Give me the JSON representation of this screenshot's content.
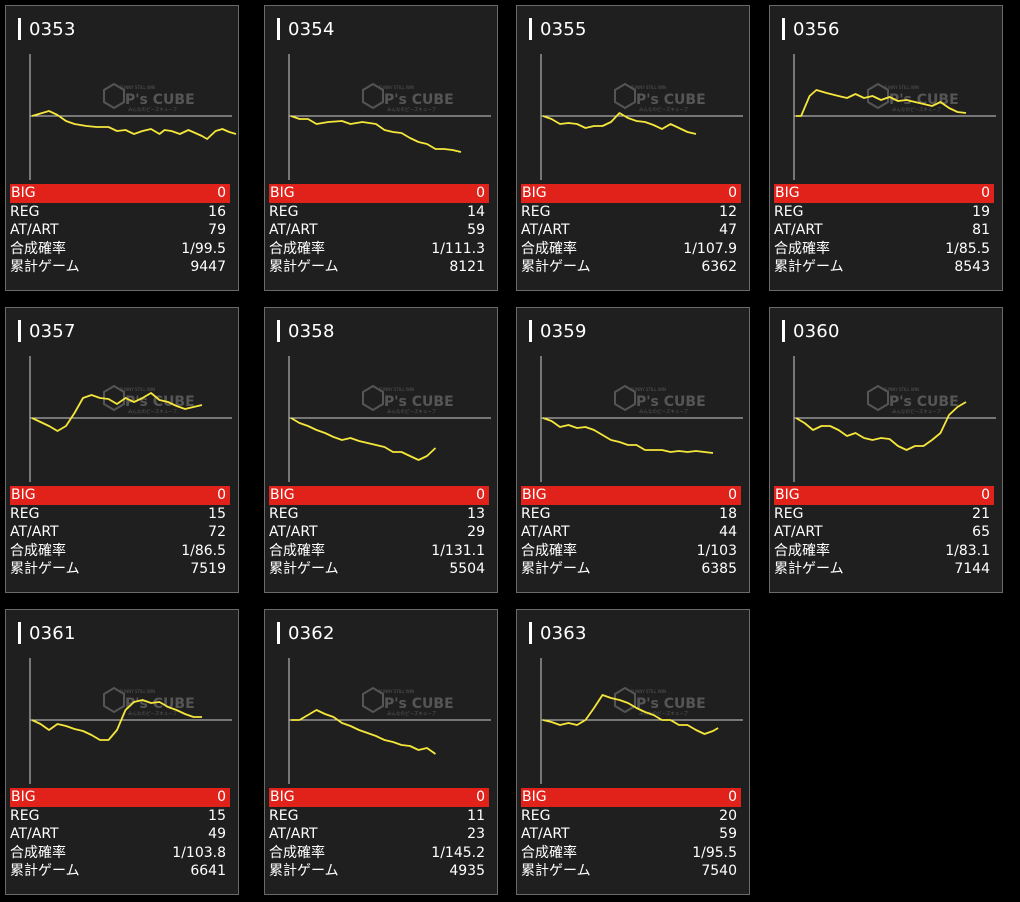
{
  "labels": {
    "big": "BIG",
    "reg": "REG",
    "at": "AT/ART",
    "prob": "合成確率",
    "games": "累計ゲーム"
  },
  "watermark": {
    "brand": "P's CUBE",
    "tagline_top": "FUNNY STILL WIN",
    "tagline_bottom": "みんなのピーズキューブ"
  },
  "colors": {
    "big_row": "#e0221a",
    "graph_line": "#f5e63c",
    "card_bg": "#1f1f1f"
  },
  "machines": [
    {
      "number": "0353",
      "big": "0",
      "reg": "16",
      "at": "79",
      "prob": "1/99.5",
      "games": "9447",
      "graph": [
        [
          0,
          0
        ],
        [
          0.1,
          -5
        ],
        [
          0.15,
          -1
        ],
        [
          0.2,
          5
        ],
        [
          0.25,
          8
        ],
        [
          0.32,
          10
        ],
        [
          0.38,
          11
        ],
        [
          0.45,
          11
        ],
        [
          0.5,
          15
        ],
        [
          0.55,
          14
        ],
        [
          0.6,
          18
        ],
        [
          0.65,
          15
        ],
        [
          0.7,
          13
        ],
        [
          0.75,
          18
        ],
        [
          0.78,
          14
        ],
        [
          0.82,
          15
        ],
        [
          0.87,
          18
        ],
        [
          0.92,
          14
        ],
        [
          1,
          20
        ],
        [
          1.03,
          23
        ],
        [
          1.08,
          15
        ],
        [
          1.12,
          13
        ],
        [
          1.16,
          16
        ],
        [
          1.2,
          18
        ]
      ]
    },
    {
      "number": "0354",
      "big": "0",
      "reg": "14",
      "at": "59",
      "prob": "1/111.3",
      "games": "8121",
      "graph": [
        [
          0,
          0
        ],
        [
          0.05,
          3
        ],
        [
          0.1,
          3
        ],
        [
          0.15,
          8
        ],
        [
          0.22,
          6
        ],
        [
          0.3,
          5
        ],
        [
          0.35,
          8
        ],
        [
          0.42,
          6
        ],
        [
          0.5,
          8
        ],
        [
          0.55,
          14
        ],
        [
          0.6,
          16
        ],
        [
          0.65,
          17
        ],
        [
          0.7,
          22
        ],
        [
          0.75,
          26
        ],
        [
          0.8,
          28
        ],
        [
          0.85,
          33
        ],
        [
          0.9,
          33
        ],
        [
          0.95,
          34
        ],
        [
          1,
          36
        ]
      ]
    },
    {
      "number": "0355",
      "big": "0",
      "reg": "12",
      "at": "47",
      "prob": "1/107.9",
      "games": "6362",
      "graph": [
        [
          0,
          0
        ],
        [
          0.05,
          3
        ],
        [
          0.1,
          8
        ],
        [
          0.15,
          7
        ],
        [
          0.2,
          8
        ],
        [
          0.25,
          12
        ],
        [
          0.3,
          10
        ],
        [
          0.35,
          10
        ],
        [
          0.4,
          6
        ],
        [
          0.45,
          -3
        ],
        [
          0.5,
          2
        ],
        [
          0.55,
          5
        ],
        [
          0.6,
          6
        ],
        [
          0.65,
          9
        ],
        [
          0.7,
          13
        ],
        [
          0.75,
          8
        ],
        [
          0.8,
          12
        ],
        [
          0.85,
          16
        ],
        [
          0.9,
          18
        ]
      ]
    },
    {
      "number": "0356",
      "big": "0",
      "reg": "19",
      "at": "81",
      "prob": "1/85.5",
      "games": "8543",
      "graph": [
        [
          0,
          0
        ],
        [
          0.03,
          0
        ],
        [
          0.08,
          -20
        ],
        [
          0.12,
          -26
        ],
        [
          0.18,
          -23
        ],
        [
          0.25,
          -20
        ],
        [
          0.3,
          -18
        ],
        [
          0.35,
          -22
        ],
        [
          0.4,
          -18
        ],
        [
          0.45,
          -20
        ],
        [
          0.5,
          -16
        ],
        [
          0.55,
          -19
        ],
        [
          0.6,
          -15
        ],
        [
          0.65,
          -16
        ],
        [
          0.7,
          -14
        ],
        [
          0.75,
          -12
        ],
        [
          0.8,
          -10
        ],
        [
          0.85,
          -14
        ],
        [
          0.9,
          -8
        ],
        [
          0.95,
          -4
        ],
        [
          1,
          -3
        ]
      ]
    },
    {
      "number": "0357",
      "big": "0",
      "reg": "15",
      "at": "72",
      "prob": "1/86.5",
      "games": "7519",
      "graph": [
        [
          0,
          0
        ],
        [
          0.05,
          4
        ],
        [
          0.1,
          8
        ],
        [
          0.15,
          13
        ],
        [
          0.2,
          8
        ],
        [
          0.25,
          -5
        ],
        [
          0.3,
          -20
        ],
        [
          0.35,
          -23
        ],
        [
          0.4,
          -20
        ],
        [
          0.45,
          -19
        ],
        [
          0.5,
          -14
        ],
        [
          0.55,
          -20
        ],
        [
          0.6,
          -16
        ],
        [
          0.65,
          -20
        ],
        [
          0.7,
          -25
        ],
        [
          0.75,
          -18
        ],
        [
          0.8,
          -16
        ],
        [
          0.85,
          -12
        ],
        [
          0.9,
          -9
        ],
        [
          0.95,
          -11
        ],
        [
          1,
          -13
        ]
      ]
    },
    {
      "number": "0358",
      "big": "0",
      "reg": "13",
      "at": "29",
      "prob": "1/131.1",
      "games": "5504",
      "graph": [
        [
          0,
          0
        ],
        [
          0.05,
          5
        ],
        [
          0.1,
          8
        ],
        [
          0.15,
          12
        ],
        [
          0.2,
          15
        ],
        [
          0.25,
          19
        ],
        [
          0.3,
          22
        ],
        [
          0.35,
          20
        ],
        [
          0.4,
          23
        ],
        [
          0.45,
          25
        ],
        [
          0.5,
          27
        ],
        [
          0.55,
          29
        ],
        [
          0.6,
          34
        ],
        [
          0.65,
          34
        ],
        [
          0.7,
          38
        ],
        [
          0.75,
          42
        ],
        [
          0.8,
          38
        ],
        [
          0.85,
          30
        ]
      ]
    },
    {
      "number": "0359",
      "big": "0",
      "reg": "18",
      "at": "44",
      "prob": "1/103",
      "games": "6385",
      "graph": [
        [
          0,
          0
        ],
        [
          0.05,
          3
        ],
        [
          0.1,
          9
        ],
        [
          0.15,
          7
        ],
        [
          0.2,
          10
        ],
        [
          0.25,
          9
        ],
        [
          0.3,
          12
        ],
        [
          0.35,
          17
        ],
        [
          0.4,
          22
        ],
        [
          0.45,
          24
        ],
        [
          0.5,
          27
        ],
        [
          0.55,
          27
        ],
        [
          0.6,
          32
        ],
        [
          0.65,
          32
        ],
        [
          0.7,
          32
        ],
        [
          0.75,
          34
        ],
        [
          0.8,
          33
        ],
        [
          0.85,
          34
        ],
        [
          0.9,
          33
        ],
        [
          0.95,
          34
        ],
        [
          1,
          35
        ]
      ]
    },
    {
      "number": "0360",
      "big": "0",
      "reg": "21",
      "at": "65",
      "prob": "1/83.1",
      "games": "7144",
      "graph": [
        [
          0,
          0
        ],
        [
          0.05,
          5
        ],
        [
          0.1,
          12
        ],
        [
          0.15,
          8
        ],
        [
          0.2,
          8
        ],
        [
          0.25,
          12
        ],
        [
          0.3,
          18
        ],
        [
          0.35,
          15
        ],
        [
          0.4,
          20
        ],
        [
          0.45,
          22
        ],
        [
          0.5,
          20
        ],
        [
          0.55,
          21
        ],
        [
          0.6,
          28
        ],
        [
          0.65,
          32
        ],
        [
          0.7,
          28
        ],
        [
          0.75,
          28
        ],
        [
          0.8,
          22
        ],
        [
          0.85,
          15
        ],
        [
          0.9,
          -3
        ],
        [
          0.95,
          -11
        ],
        [
          1,
          -16
        ]
      ]
    },
    {
      "number": "0361",
      "big": "0",
      "reg": "15",
      "at": "49",
      "prob": "1/103.8",
      "games": "6641",
      "graph": [
        [
          0,
          0
        ],
        [
          0.05,
          4
        ],
        [
          0.1,
          10
        ],
        [
          0.15,
          4
        ],
        [
          0.2,
          6
        ],
        [
          0.25,
          9
        ],
        [
          0.3,
          11
        ],
        [
          0.35,
          15
        ],
        [
          0.4,
          20
        ],
        [
          0.45,
          20
        ],
        [
          0.5,
          10
        ],
        [
          0.55,
          -10
        ],
        [
          0.6,
          -18
        ],
        [
          0.65,
          -20
        ],
        [
          0.7,
          -17
        ],
        [
          0.75,
          -18
        ],
        [
          0.8,
          -13
        ],
        [
          0.85,
          -10
        ],
        [
          0.9,
          -6
        ],
        [
          0.95,
          -3
        ],
        [
          1,
          -3
        ]
      ]
    },
    {
      "number": "0362",
      "big": "0",
      "reg": "11",
      "at": "23",
      "prob": "1/145.2",
      "games": "4935",
      "graph": [
        [
          0,
          0
        ],
        [
          0.05,
          0
        ],
        [
          0.1,
          -5
        ],
        [
          0.15,
          -10
        ],
        [
          0.2,
          -6
        ],
        [
          0.25,
          -3
        ],
        [
          0.3,
          3
        ],
        [
          0.35,
          6
        ],
        [
          0.4,
          10
        ],
        [
          0.45,
          13
        ],
        [
          0.5,
          16
        ],
        [
          0.55,
          20
        ],
        [
          0.6,
          22
        ],
        [
          0.65,
          25
        ],
        [
          0.7,
          26
        ],
        [
          0.75,
          30
        ],
        [
          0.8,
          28
        ],
        [
          0.85,
          34
        ]
      ]
    },
    {
      "number": "0363",
      "big": "0",
      "reg": "20",
      "at": "59",
      "prob": "1/95.5",
      "games": "7540",
      "graph": [
        [
          0,
          0
        ],
        [
          0.05,
          2
        ],
        [
          0.1,
          5
        ],
        [
          0.15,
          3
        ],
        [
          0.2,
          5
        ],
        [
          0.25,
          0
        ],
        [
          0.3,
          -12
        ],
        [
          0.35,
          -25
        ],
        [
          0.4,
          -22
        ],
        [
          0.45,
          -20
        ],
        [
          0.5,
          -17
        ],
        [
          0.55,
          -12
        ],
        [
          0.6,
          -8
        ],
        [
          0.65,
          -5
        ],
        [
          0.7,
          0
        ],
        [
          0.75,
          0
        ],
        [
          0.8,
          5
        ],
        [
          0.85,
          5
        ],
        [
          0.9,
          10
        ],
        [
          0.95,
          14
        ],
        [
          1,
          11
        ],
        [
          1.03,
          8
        ]
      ]
    }
  ]
}
